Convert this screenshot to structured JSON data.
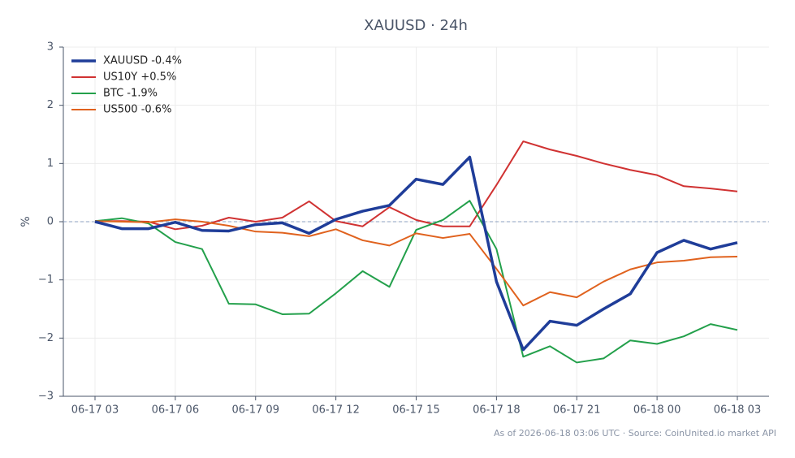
{
  "chart_data": {
    "type": "line",
    "title": "XAUUSD · 24h",
    "ylabel": "%",
    "footer": "As of 2026-06-18 03:06 UTC · Source: CoinUnited.io market API",
    "categories": [
      "06-17 03",
      null,
      null,
      "06-17 06",
      null,
      null,
      "06-17 09",
      null,
      null,
      "06-17 12",
      null,
      null,
      "06-17 15",
      null,
      null,
      "06-17 18",
      null,
      null,
      "06-17 21",
      null,
      null,
      "06-18 00",
      null,
      null,
      "06-18 03"
    ],
    "series": [
      {
        "name": "XAUUSD -0.4%",
        "color": "#1f3d99",
        "width": 3.5,
        "values": [
          0,
          -0.12,
          -0.12,
          -0.01,
          -0.15,
          -0.16,
          -0.05,
          -0.02,
          -0.2,
          0.04,
          0.18,
          0.28,
          0.73,
          0.64,
          1.11,
          -1.03,
          -2.2,
          -1.71,
          -1.78,
          -1.5,
          -1.24,
          -0.53,
          -0.32,
          -0.47,
          -0.36
        ]
      },
      {
        "name": "US10Y +0.5%",
        "color": "#d03232",
        "width": 2,
        "values": [
          0.01,
          0.01,
          0,
          -0.13,
          -0.07,
          0.07,
          0,
          0.07,
          0.35,
          0.01,
          -0.08,
          0.25,
          0.03,
          -0.08,
          -0.08,
          0.63,
          1.38,
          1.24,
          1.13,
          1.0,
          0.89,
          0.8,
          0.61,
          0.57,
          0.52
        ]
      },
      {
        "name": "BTC -1.9%",
        "color": "#23a04b",
        "width": 2,
        "values": [
          0.01,
          0.06,
          -0.03,
          -0.35,
          -0.47,
          -1.41,
          -1.42,
          -1.59,
          -1.58,
          -1.23,
          -0.85,
          -1.12,
          -0.14,
          0.03,
          0.36,
          -0.47,
          -2.32,
          -2.14,
          -2.42,
          -2.35,
          -2.04,
          -2.1,
          -1.97,
          -1.76,
          -1.86
        ]
      },
      {
        "name": "US500 -0.6%",
        "color": "#e0621e",
        "width": 2,
        "values": [
          0.01,
          0,
          -0.01,
          0.04,
          0,
          -0.07,
          -0.17,
          -0.19,
          -0.25,
          -0.13,
          -0.32,
          -0.41,
          -0.2,
          -0.28,
          -0.21,
          -0.81,
          -1.44,
          -1.21,
          -1.3,
          -1.03,
          -0.82,
          -0.7,
          -0.67,
          -0.61,
          -0.6
        ]
      }
    ],
    "ylim": [
      -3,
      3
    ],
    "yticks": [
      {
        "value": -3,
        "label": "−3"
      },
      {
        "value": -2,
        "label": "−2"
      },
      {
        "value": -1,
        "label": "−1"
      },
      0,
      1,
      2,
      3
    ],
    "grid": true,
    "zero_line": true,
    "legend": "upper-left"
  }
}
